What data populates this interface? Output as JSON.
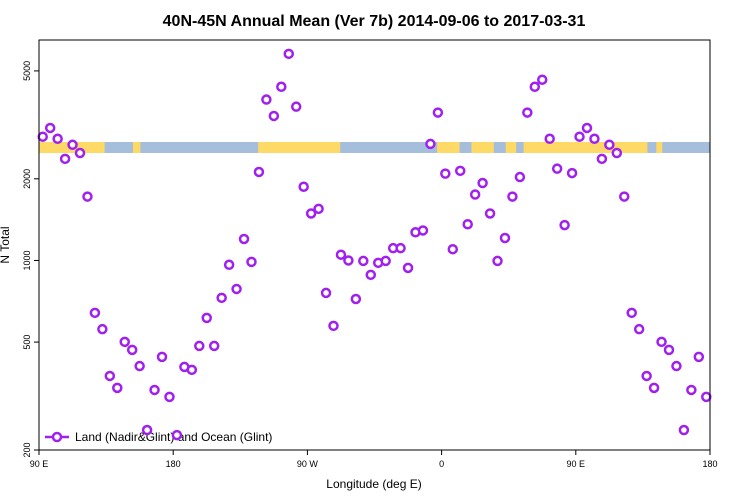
{
  "chart_data": {
    "type": "scatter",
    "title": "40N-45N Annual Mean (Ver 7b)   2014-09-06 to 2017-03-31",
    "x_label": "Longitude (deg E)",
    "y_label": "N Total",
    "log_y": true,
    "xlim": [
      90,
      540
    ],
    "ylim": [
      200,
      6500
    ],
    "xticks": [
      {
        "value": 90,
        "label": "90 E"
      },
      180,
      {
        "value": 270,
        "label": "90 W"
      },
      {
        "value": 360,
        "label": "0"
      },
      {
        "value": 450,
        "label": "90 E"
      },
      {
        "value": 540,
        "label": "180"
      }
    ],
    "yticks": [
      200,
      500,
      1000,
      2000,
      5000
    ],
    "legend": "bottom-left",
    "land_color": "#ffd966",
    "ocean_color": "#a4bedc",
    "land_ranges": [
      [
        90,
        134
      ],
      [
        153,
        158
      ],
      [
        237,
        292
      ],
      [
        357,
        372
      ],
      [
        380,
        395
      ],
      [
        403,
        410
      ],
      [
        415,
        498
      ],
      [
        504,
        508
      ]
    ],
    "series": [
      {
        "name": "Land (Nadir&Glint) and Ocean (Glint)",
        "color": "#a020f0",
        "x": [
          92.5,
          97.5,
          102.5,
          107.5,
          112.5,
          117.5,
          122.5,
          127.5,
          132.5,
          137.5,
          142.5,
          147.5,
          152.5,
          157.5,
          162.5,
          167.5,
          172.5,
          177.5,
          182.5,
          187.5,
          192.5,
          197.5,
          202.5,
          207.5,
          212.5,
          217.5,
          222.5,
          227.5,
          232.5,
          237.5,
          242.5,
          247.5,
          252.5,
          257.5,
          262.5,
          267.5,
          272.5,
          277.5,
          282.5,
          287.5,
          292.5,
          297.5,
          302.5,
          307.5,
          312.5,
          317.5,
          322.5,
          327.5,
          332.5,
          337.5,
          342.5,
          347.5,
          352.5,
          357.5,
          362.5,
          367.5,
          372.5,
          377.5,
          382.5,
          387.5,
          392.5,
          397.5,
          402.5,
          407.5,
          412.5,
          417.5,
          422.5,
          427.5,
          432.5,
          437.5,
          442.5,
          447.5,
          452.5,
          457.5,
          462.5,
          467.5,
          472.5,
          477.5,
          482.5,
          487.5,
          492.5,
          497.5,
          502.5,
          507.5,
          512.5,
          517.5,
          522.5,
          527.5,
          532.5,
          537.5
        ],
        "values": [
          2860,
          3080,
          2810,
          2370,
          2670,
          2490,
          1720,
          641,
          558,
          375,
          339,
          501,
          468,
          408,
          237,
          333,
          441,
          314,
          227,
          405,
          395,
          484,
          614,
          484,
          728,
          964,
          785,
          1200,
          988,
          2120,
          3920,
          3410,
          4370,
          5780,
          3690,
          1870,
          1490,
          1550,
          759,
          574,
          1050,
          1000,
          721,
          996,
          885,
          980,
          996,
          1110,
          1110,
          939,
          1270,
          1290,
          2690,
          3510,
          2090,
          1100,
          2140,
          1360,
          1750,
          1930,
          1490,
          996,
          1210,
          1720,
          2030,
          3510,
          4370,
          4640,
          2810,
          2180,
          1350,
          2100,
          2860,
          3080,
          2810,
          2370,
          2670,
          2490,
          1720,
          641,
          558,
          375,
          339,
          501,
          468,
          408,
          237,
          333,
          441,
          314
        ]
      }
    ]
  }
}
